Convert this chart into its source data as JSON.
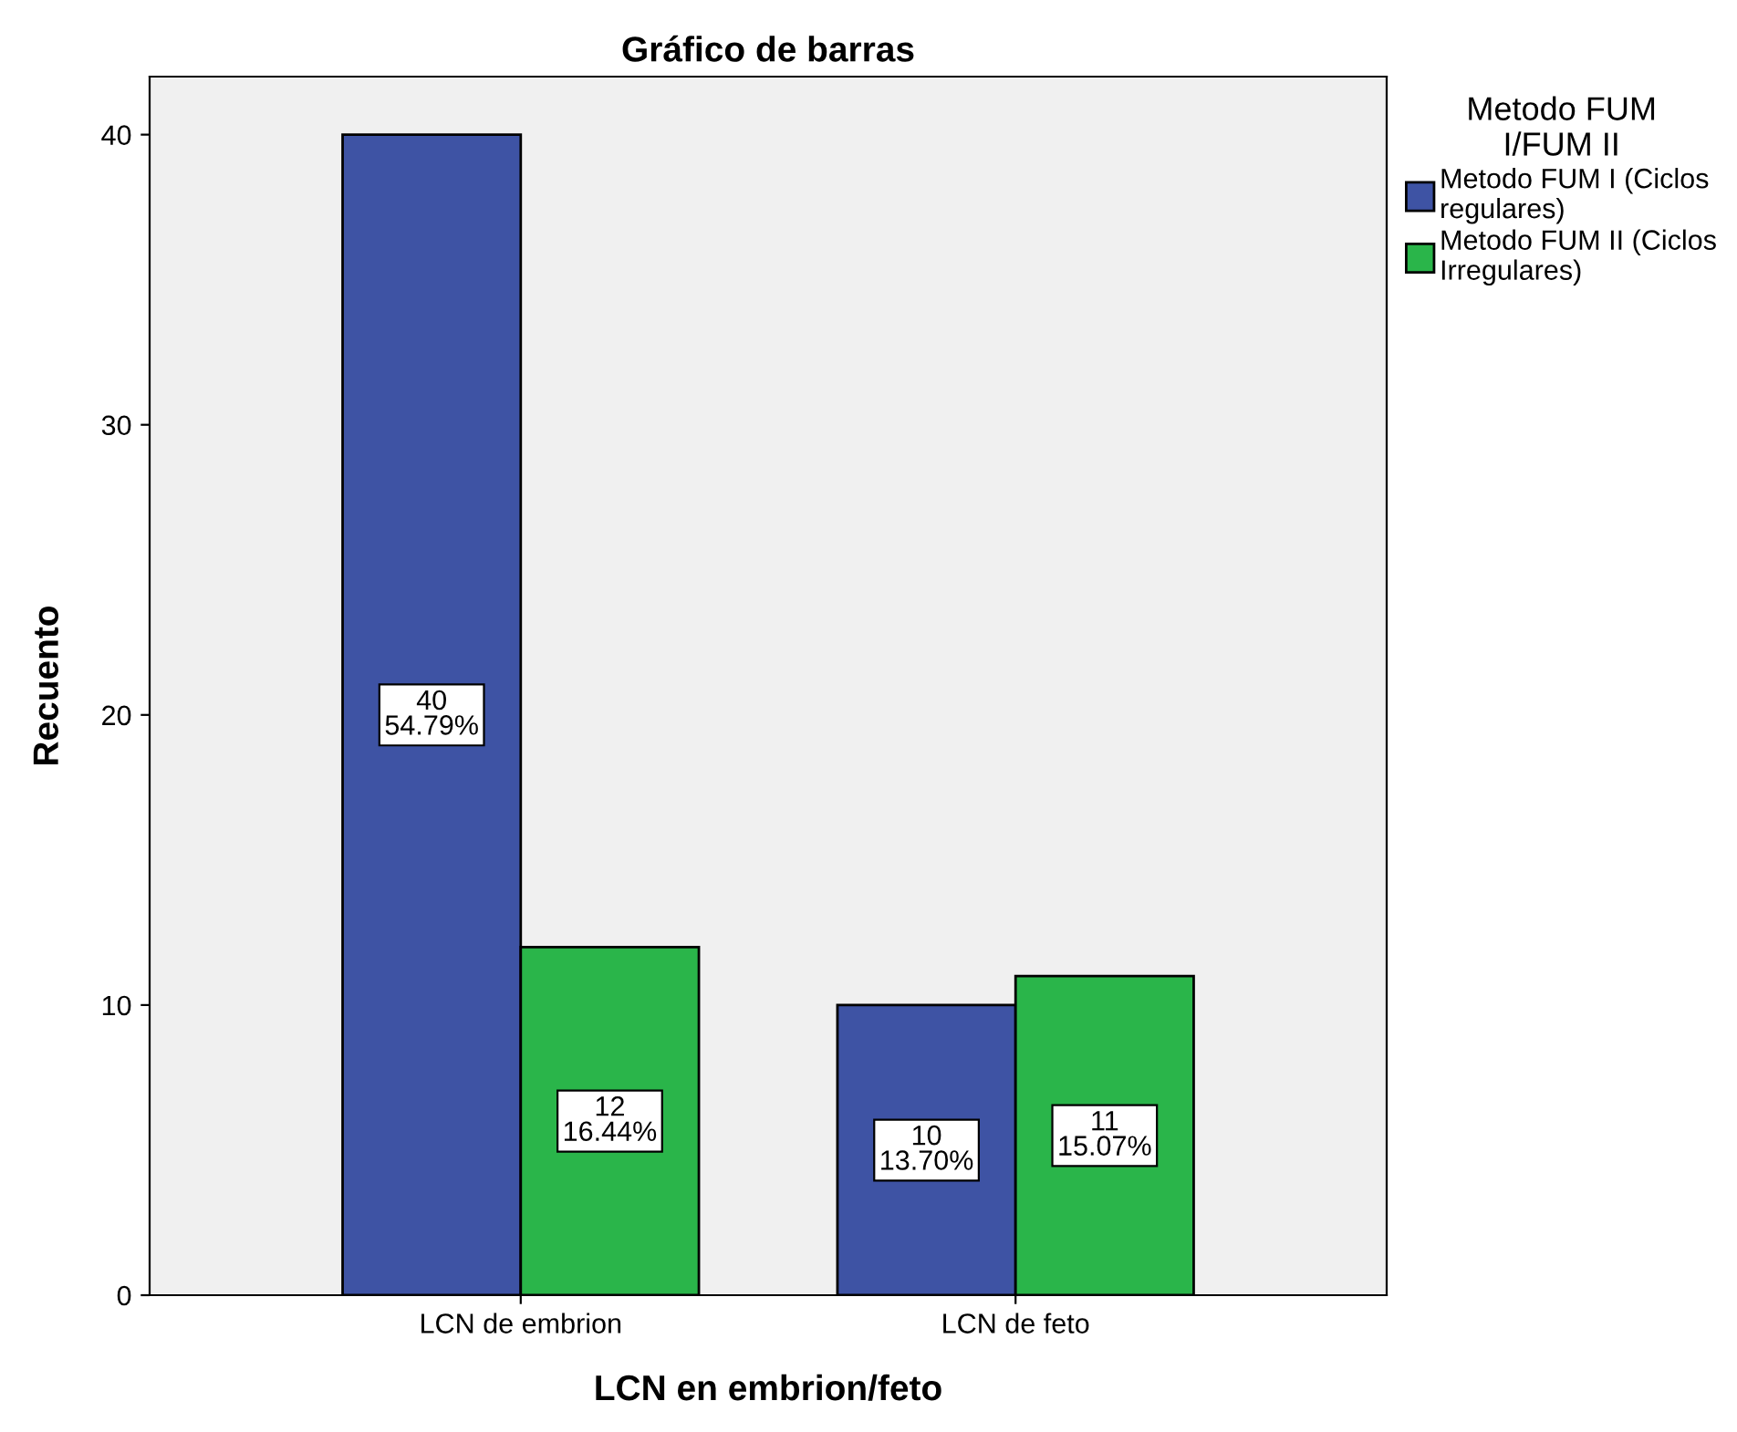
{
  "chart_data": {
    "type": "bar",
    "title": "Gráfico de barras",
    "xlabel": "LCN en embrion/feto",
    "ylabel": "Recuento",
    "legend_title": "Metodo FUM\nI/FUM II",
    "categories": [
      "LCN de embrion",
      "LCN de feto"
    ],
    "series": [
      {
        "name": "Metodo FUM I (Ciclos\nregulares)",
        "color": "#3e53a4",
        "values": [
          40,
          10
        ],
        "value_labels": [
          "40\n54.79%",
          "10\n13.70%"
        ]
      },
      {
        "name": "Metodo FUM II (Ciclos\nIrregulares)",
        "color": "#2ab54a",
        "values": [
          12,
          11
        ],
        "value_labels": [
          "12\n16.44%",
          "11\n15.07%"
        ]
      }
    ],
    "ylim": [
      0,
      42
    ],
    "yticks": [
      0,
      10,
      20,
      30,
      40
    ],
    "grid": false,
    "legend": "top right"
  }
}
